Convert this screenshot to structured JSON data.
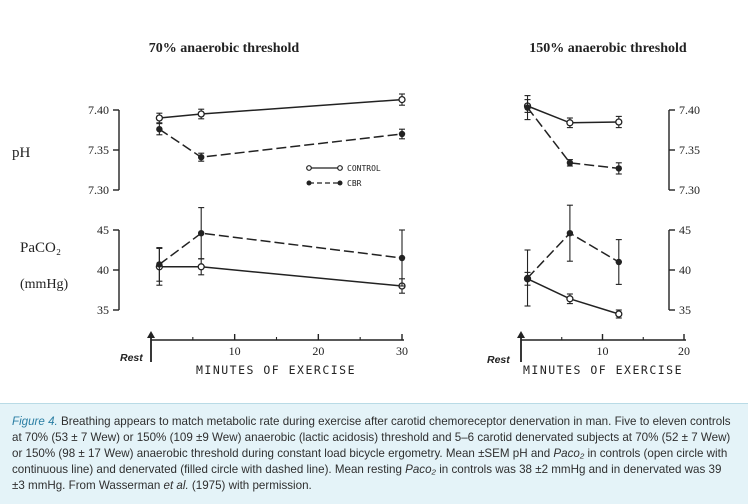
{
  "figure": {
    "y_labels": {
      "ph": "pH",
      "paco2": "PaCO₂",
      "paco2_unit": "(mmHg)"
    },
    "rest_label": "Rest",
    "legend": {
      "control": "CONTROL",
      "cbr": "CBR"
    },
    "colors": {
      "ink": "#222222",
      "caption_bg": "#e4f3f8",
      "caption_label": "#2a7ea3"
    }
  },
  "chart_data": [
    {
      "type": "line",
      "title": "70% anaerobic threshold",
      "quantity": "pH",
      "xlabel": "MINUTES OF EXERCISE",
      "xlim": [
        0,
        30
      ],
      "xticks": [
        "10",
        "20",
        "30"
      ],
      "ylim": [
        7.3,
        7.4
      ],
      "yticks": [
        "7.40",
        "7.35",
        "7.30"
      ],
      "series": [
        {
          "name": "CONTROL",
          "marker": "open",
          "line": "solid",
          "x": [
            1,
            6,
            30
          ],
          "y": [
            7.39,
            7.395,
            7.413
          ],
          "err": [
            0.006,
            0.006,
            0.007
          ]
        },
        {
          "name": "CBR",
          "marker": "filled",
          "line": "dashed",
          "x": [
            1,
            6,
            30
          ],
          "y": [
            7.376,
            7.341,
            7.37
          ],
          "err": [
            0.007,
            0.005,
            0.006
          ]
        }
      ]
    },
    {
      "type": "line",
      "title": "70% anaerobic threshold",
      "quantity": "PaCO2",
      "xlabel": "MINUTES OF EXERCISE",
      "xlim": [
        0,
        30
      ],
      "xticks": [
        "10",
        "20",
        "30"
      ],
      "ylim": [
        35,
        45
      ],
      "yticks": [
        "45",
        "40",
        "35"
      ],
      "series": [
        {
          "name": "CONTROL",
          "marker": "open",
          "line": "solid",
          "x": [
            1,
            6,
            30
          ],
          "y": [
            40.4,
            40.4,
            38
          ],
          "err": [
            2.3,
            1.0,
            0.9
          ]
        },
        {
          "name": "CBR",
          "marker": "filled",
          "line": "dashed",
          "x": [
            1,
            6,
            30
          ],
          "y": [
            40.7,
            44.6,
            41.5
          ],
          "err": [
            2.1,
            3.2,
            3.5
          ]
        }
      ]
    },
    {
      "type": "line",
      "title": "150% anaerobic threshold",
      "quantity": "pH",
      "xlabel": "MINUTES OF EXERCISE",
      "xlim": [
        0,
        20
      ],
      "xticks": [
        "10",
        "20"
      ],
      "ylim": [
        7.3,
        7.4
      ],
      "yticks": [
        "7.40",
        "7.35",
        "7.30"
      ],
      "series": [
        {
          "name": "CONTROL",
          "marker": "open",
          "line": "solid",
          "x": [
            0.8,
            6,
            12
          ],
          "y": [
            7.405,
            7.384,
            7.385
          ],
          "err": [
            0.008,
            0.006,
            0.007
          ]
        },
        {
          "name": "CBR",
          "marker": "filled",
          "line": "dashed",
          "x": [
            0.8,
            6,
            12
          ],
          "y": [
            7.403,
            7.334,
            7.327
          ],
          "err": [
            0.015,
            0.004,
            0.007
          ]
        }
      ]
    },
    {
      "type": "line",
      "title": "150% anaerobic threshold",
      "quantity": "PaCO2",
      "xlabel": "MINUTES OF EXERCISE",
      "xlim": [
        0,
        20
      ],
      "xticks": [
        "10",
        "20"
      ],
      "ylim": [
        35,
        45
      ],
      "yticks": [
        "45",
        "40",
        "35"
      ],
      "series": [
        {
          "name": "CONTROL",
          "marker": "open",
          "line": "solid",
          "x": [
            0.8,
            6,
            12
          ],
          "y": [
            38.9,
            36.4,
            34.5
          ],
          "err": [
            0.8,
            0.6,
            0.5
          ]
        },
        {
          "name": "CBR",
          "marker": "filled",
          "line": "dashed",
          "x": [
            0.8,
            6,
            12
          ],
          "y": [
            39,
            44.6,
            41
          ],
          "err": [
            3.5,
            3.5,
            2.8
          ]
        }
      ]
    }
  ],
  "caption": {
    "label": "Figure 4.",
    "text": "Breathing appears to match metabolic rate during exercise after carotid chemoreceptor denervation in man. Five to eleven controls at 70% (53 ± 7 Wew) or 150% (109 ±9 Wew) anaerobic (lactic acidosis) threshold and 5–6 carotid denervated subjects at 70% (52 ± 7 Wew) or 150% (98 ± 17 Wew) anaerobic threshold during constant load bicycle ergometry. Mean ±SEM pH and ",
    "paco_symbol": "Paco₂",
    "text2": " in controls (open circle with continuous line) and denervated (filled circle with dashed line). Mean resting ",
    "text3": " in controls was 38 ±2 mmHg and in denervated was 39 ±3 mmHg. From Wasserman ",
    "etal": "et al.",
    "text4": " (1975) with permission."
  }
}
